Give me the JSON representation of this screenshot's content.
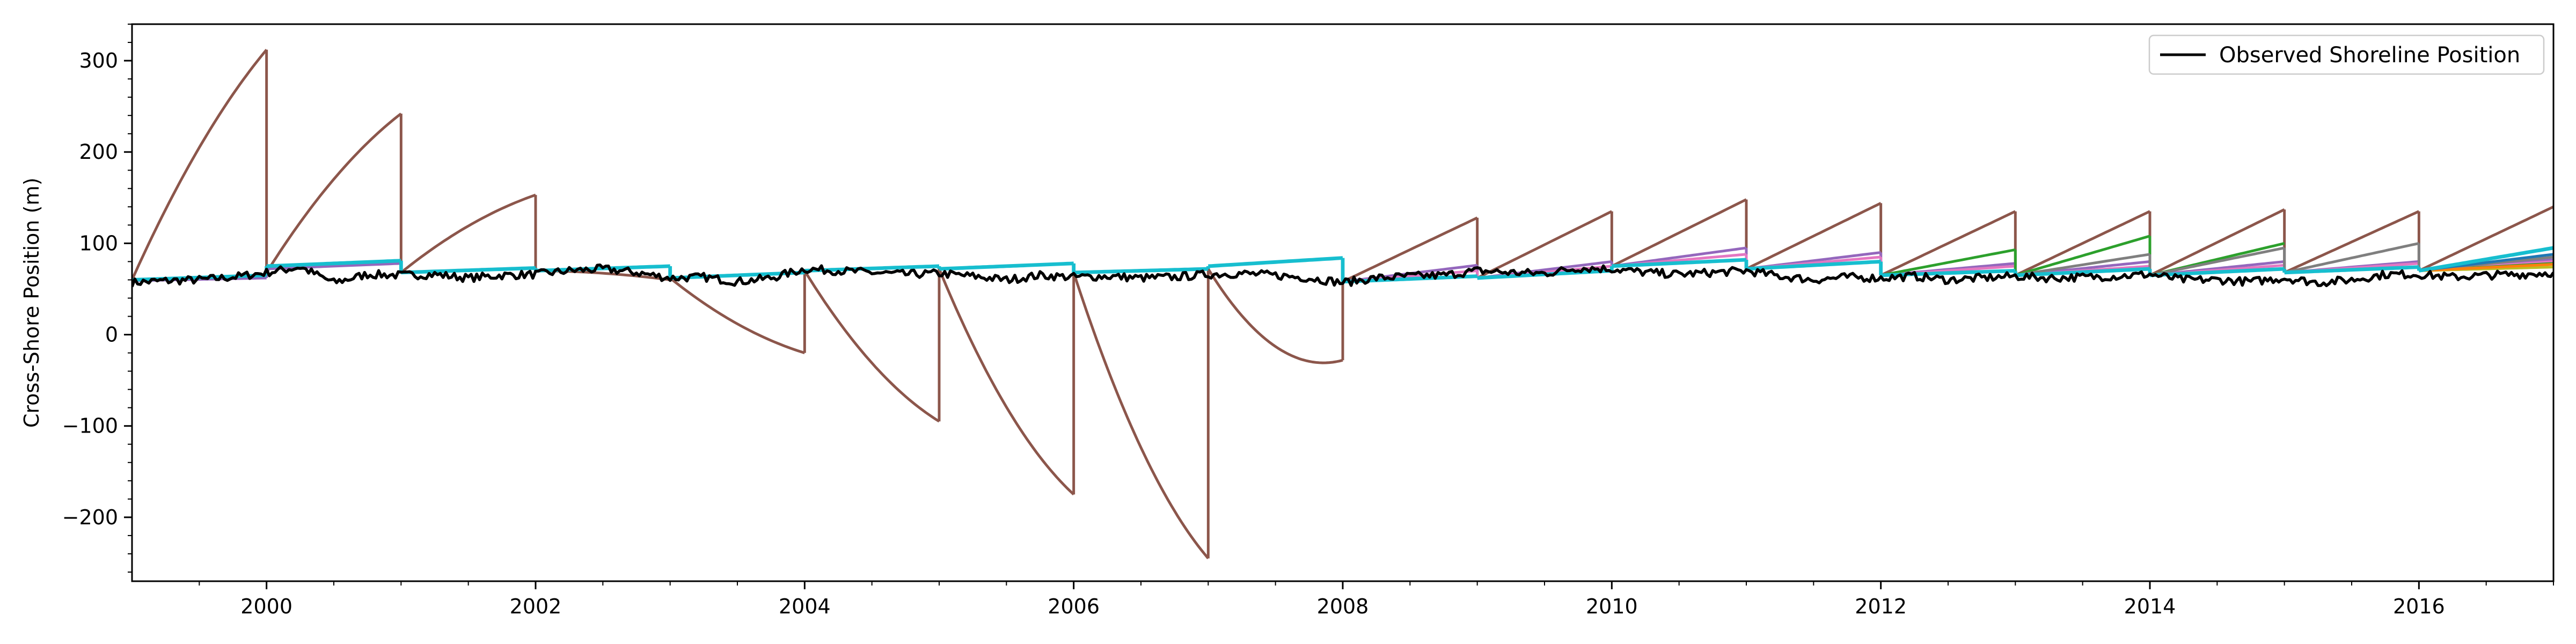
{
  "chart_data": {
    "type": "line",
    "title": "",
    "xlabel": "",
    "ylabel": "Cross-Shore Position (m)",
    "xlim": [
      1999.0,
      2017.0
    ],
    "ylim": [
      -270,
      340
    ],
    "x_ticks": [
      2000,
      2002,
      2004,
      2006,
      2008,
      2010,
      2012,
      2014,
      2016
    ],
    "x_tick_labels": [
      "2000",
      "2002",
      "2004",
      "2006",
      "2008",
      "2010",
      "2012",
      "2014",
      "2016"
    ],
    "y_ticks": [
      -200,
      -100,
      0,
      100,
      200,
      300
    ],
    "y_tick_labels": [
      "−200",
      "−100",
      "0",
      "100",
      "200",
      "300"
    ],
    "legend": {
      "placement": "top-right",
      "entries": [
        {
          "label": "Observed Shoreline Position",
          "color": "#000000"
        }
      ]
    },
    "observed": {
      "name": "Observed Shoreline Position",
      "color": "#000000",
      "points": [
        [
          1999.0,
          57
        ],
        [
          1999.25,
          59
        ],
        [
          1999.5,
          60
        ],
        [
          1999.75,
          63
        ],
        [
          2000.0,
          68
        ],
        [
          2000.25,
          74
        ],
        [
          2000.5,
          57
        ],
        [
          2000.75,
          66
        ],
        [
          2001.0,
          65
        ],
        [
          2001.25,
          66
        ],
        [
          2001.5,
          62
        ],
        [
          2001.75,
          65
        ],
        [
          2002.0,
          66
        ],
        [
          2002.25,
          70
        ],
        [
          2002.5,
          72
        ],
        [
          2002.75,
          68
        ],
        [
          2003.0,
          62
        ],
        [
          2003.25,
          63
        ],
        [
          2003.5,
          58
        ],
        [
          2003.75,
          62
        ],
        [
          2004.0,
          72
        ],
        [
          2004.25,
          70
        ],
        [
          2004.5,
          68
        ],
        [
          2004.75,
          66
        ],
        [
          2005.0,
          67
        ],
        [
          2005.25,
          64
        ],
        [
          2005.5,
          60
        ],
        [
          2005.75,
          65
        ],
        [
          2006.0,
          63
        ],
        [
          2006.25,
          64
        ],
        [
          2006.5,
          62
        ],
        [
          2006.75,
          63
        ],
        [
          2007.0,
          66
        ],
        [
          2007.25,
          67
        ],
        [
          2007.5,
          65
        ],
        [
          2007.75,
          62
        ],
        [
          2008.0,
          57
        ],
        [
          2008.25,
          62
        ],
        [
          2008.5,
          64
        ],
        [
          2008.75,
          65
        ],
        [
          2009.0,
          70
        ],
        [
          2009.25,
          68
        ],
        [
          2009.5,
          67
        ],
        [
          2009.75,
          73
        ],
        [
          2010.0,
          72
        ],
        [
          2010.25,
          68
        ],
        [
          2010.5,
          66
        ],
        [
          2010.75,
          68
        ],
        [
          2011.0,
          70
        ],
        [
          2011.25,
          64
        ],
        [
          2011.5,
          60
        ],
        [
          2011.75,
          63
        ],
        [
          2012.0,
          62
        ],
        [
          2012.25,
          64
        ],
        [
          2012.5,
          60
        ],
        [
          2012.75,
          62
        ],
        [
          2013.0,
          64
        ],
        [
          2013.25,
          62
        ],
        [
          2013.5,
          63
        ],
        [
          2013.75,
          64
        ],
        [
          2014.0,
          66
        ],
        [
          2014.25,
          60
        ],
        [
          2014.5,
          60
        ],
        [
          2014.75,
          58
        ],
        [
          2015.0,
          62
        ],
        [
          2015.25,
          57
        ],
        [
          2015.5,
          60
        ],
        [
          2015.75,
          66
        ],
        [
          2016.0,
          66
        ],
        [
          2016.25,
          63
        ],
        [
          2016.5,
          65
        ],
        [
          2016.75,
          66
        ],
        [
          2017.0,
          68
        ]
      ]
    },
    "forecast_runs": [
      {
        "color": "#8c564b",
        "segments": [
          {
            "start": 1999.0,
            "end": 2000.0,
            "y0": 60,
            "y1": 312,
            "shape": 0.3
          },
          {
            "start": 2000.0,
            "end": 2001.0,
            "y0": 68,
            "y1": 242,
            "shape": 0.35
          },
          {
            "start": 2001.0,
            "end": 2002.0,
            "y0": 68,
            "y1": 153,
            "shape": 0.4
          },
          {
            "start": 2002.0,
            "end": 2003.0,
            "y0": 70,
            "y1": 60,
            "shape": -0.9
          },
          {
            "start": 2003.0,
            "end": 2004.0,
            "y0": 62,
            "y1": -20,
            "shape": 0.45
          },
          {
            "start": 2004.0,
            "end": 2005.0,
            "y0": 70,
            "y1": -95,
            "shape": 0.45
          },
          {
            "start": 2005.0,
            "end": 2006.0,
            "y0": 72,
            "y1": -175,
            "shape": 0.45
          },
          {
            "start": 2006.0,
            "end": 2007.0,
            "y0": 68,
            "y1": -245,
            "shape": 0.45
          },
          {
            "start": 2007.0,
            "end": 2008.0,
            "y0": 72,
            "y1": -28,
            "shape": 1.4
          },
          {
            "start": 2008.0,
            "end": 2009.0,
            "y0": 58,
            "y1": 128,
            "shape": 0
          },
          {
            "start": 2009.0,
            "end": 2010.0,
            "y0": 62,
            "y1": 135,
            "shape": 0
          },
          {
            "start": 2010.0,
            "end": 2011.0,
            "y0": 75,
            "y1": 148,
            "shape": 0
          },
          {
            "start": 2011.0,
            "end": 2012.0,
            "y0": 72,
            "y1": 144,
            "shape": 0
          },
          {
            "start": 2012.0,
            "end": 2013.0,
            "y0": 65,
            "y1": 135,
            "shape": 0
          },
          {
            "start": 2013.0,
            "end": 2014.0,
            "y0": 65,
            "y1": 135,
            "shape": 0
          },
          {
            "start": 2014.0,
            "end": 2015.0,
            "y0": 65,
            "y1": 137,
            "shape": 0
          },
          {
            "start": 2015.0,
            "end": 2016.0,
            "y0": 68,
            "y1": 135,
            "shape": 0
          },
          {
            "start": 2016.0,
            "end": 2017.0,
            "y0": 70,
            "y1": 140,
            "shape": 0
          }
        ]
      },
      {
        "color": "#9467bd",
        "segments": [
          {
            "start": 1999.0,
            "end": 2000.0,
            "y0": 59,
            "y1": 62,
            "shape": 0
          },
          {
            "start": 2000.0,
            "end": 2001.0,
            "y0": 72,
            "y1": 78,
            "shape": 0
          },
          {
            "start": 2008.0,
            "end": 2009.0,
            "y0": 58,
            "y1": 76,
            "shape": 0
          },
          {
            "start": 2009.0,
            "end": 2010.0,
            "y0": 62,
            "y1": 80,
            "shape": 0
          },
          {
            "start": 2010.0,
            "end": 2011.0,
            "y0": 75,
            "y1": 95,
            "shape": 0
          },
          {
            "start": 2011.0,
            "end": 2012.0,
            "y0": 72,
            "y1": 90,
            "shape": 0
          },
          {
            "start": 2012.0,
            "end": 2013.0,
            "y0": 65,
            "y1": 78,
            "shape": 0
          },
          {
            "start": 2013.0,
            "end": 2014.0,
            "y0": 65,
            "y1": 80,
            "shape": 0
          },
          {
            "start": 2014.0,
            "end": 2015.0,
            "y0": 65,
            "y1": 80,
            "shape": 0
          },
          {
            "start": 2015.0,
            "end": 2016.0,
            "y0": 68,
            "y1": 80,
            "shape": 0
          },
          {
            "start": 2016.0,
            "end": 2017.0,
            "y0": 70,
            "y1": 82,
            "shape": 0
          }
        ]
      },
      {
        "color": "#e377c2",
        "segments": [
          {
            "start": 2008.0,
            "end": 2009.0,
            "y0": 58,
            "y1": 70,
            "shape": 0
          },
          {
            "start": 2009.0,
            "end": 2010.0,
            "y0": 62,
            "y1": 75,
            "shape": 0
          },
          {
            "start": 2010.0,
            "end": 2011.0,
            "y0": 75,
            "y1": 88,
            "shape": 0
          },
          {
            "start": 2011.0,
            "end": 2012.0,
            "y0": 72,
            "y1": 85,
            "shape": 0
          },
          {
            "start": 2012.0,
            "end": 2013.0,
            "y0": 65,
            "y1": 75,
            "shape": 0
          },
          {
            "start": 2013.0,
            "end": 2014.0,
            "y0": 65,
            "y1": 75,
            "shape": 0
          },
          {
            "start": 2014.0,
            "end": 2015.0,
            "y0": 65,
            "y1": 76,
            "shape": 0
          },
          {
            "start": 2015.0,
            "end": 2016.0,
            "y0": 68,
            "y1": 78,
            "shape": 0
          },
          {
            "start": 2016.0,
            "end": 2017.0,
            "y0": 70,
            "y1": 80,
            "shape": 0
          }
        ]
      },
      {
        "color": "#2ca02c",
        "segments": [
          {
            "start": 2012.0,
            "end": 2013.0,
            "y0": 65,
            "y1": 93,
            "shape": 0
          },
          {
            "start": 2013.0,
            "end": 2014.0,
            "y0": 65,
            "y1": 108,
            "shape": 0
          },
          {
            "start": 2014.0,
            "end": 2015.0,
            "y0": 65,
            "y1": 100,
            "shape": 0
          },
          {
            "start": 2016.0,
            "end": 2017.0,
            "y0": 70,
            "y1": 78,
            "shape": 0
          }
        ]
      },
      {
        "color": "#7f7f7f",
        "segments": [
          {
            "start": 2013.0,
            "end": 2014.0,
            "y0": 65,
            "y1": 88,
            "shape": 0
          },
          {
            "start": 2014.0,
            "end": 2015.0,
            "y0": 65,
            "y1": 95,
            "shape": 0
          },
          {
            "start": 2015.0,
            "end": 2016.0,
            "y0": 68,
            "y1": 100,
            "shape": 0
          },
          {
            "start": 2016.0,
            "end": 2017.0,
            "y0": 70,
            "y1": 85,
            "shape": 0
          }
        ]
      },
      {
        "color": "#bcbd22",
        "segments": [
          {
            "start": 2016.0,
            "end": 2017.0,
            "y0": 70,
            "y1": 74,
            "shape": 0
          }
        ]
      },
      {
        "color": "#ff7f0e",
        "segments": [
          {
            "start": 2016.0,
            "end": 2017.0,
            "y0": 70,
            "y1": 77,
            "shape": 0
          }
        ]
      },
      {
        "color": "#1f77b4",
        "segments": [
          {
            "start": 2016.0,
            "end": 2017.0,
            "y0": 70,
            "y1": 88,
            "shape": 0
          }
        ]
      },
      {
        "color": "#17becf",
        "width": 2.2,
        "segments": [
          {
            "start": 1999.0,
            "end": 2000.0,
            "y0": 60,
            "y1": 65,
            "shape": 0
          },
          {
            "start": 2000.0,
            "end": 2001.0,
            "y0": 75,
            "y1": 81,
            "shape": 0
          },
          {
            "start": 2001.0,
            "end": 2002.0,
            "y0": 68,
            "y1": 73,
            "shape": 0
          },
          {
            "start": 2002.0,
            "end": 2003.0,
            "y0": 70,
            "y1": 75,
            "shape": 0
          },
          {
            "start": 2003.0,
            "end": 2004.0,
            "y0": 62,
            "y1": 68,
            "shape": 0
          },
          {
            "start": 2004.0,
            "end": 2005.0,
            "y0": 70,
            "y1": 75,
            "shape": 0
          },
          {
            "start": 2005.0,
            "end": 2006.0,
            "y0": 72,
            "y1": 78,
            "shape": 0
          },
          {
            "start": 2006.0,
            "end": 2007.0,
            "y0": 68,
            "y1": 72,
            "shape": 0
          },
          {
            "start": 2007.0,
            "end": 2008.0,
            "y0": 75,
            "y1": 84,
            "shape": 0
          },
          {
            "start": 2008.0,
            "end": 2009.0,
            "y0": 58,
            "y1": 64,
            "shape": 0
          },
          {
            "start": 2009.0,
            "end": 2010.0,
            "y0": 62,
            "y1": 70,
            "shape": 0
          },
          {
            "start": 2010.0,
            "end": 2011.0,
            "y0": 75,
            "y1": 82,
            "shape": 0
          },
          {
            "start": 2011.0,
            "end": 2012.0,
            "y0": 72,
            "y1": 80,
            "shape": 0
          },
          {
            "start": 2012.0,
            "end": 2013.0,
            "y0": 65,
            "y1": 70,
            "shape": 0
          },
          {
            "start": 2013.0,
            "end": 2014.0,
            "y0": 65,
            "y1": 72,
            "shape": 0
          },
          {
            "start": 2014.0,
            "end": 2015.0,
            "y0": 65,
            "y1": 72,
            "shape": 0
          },
          {
            "start": 2015.0,
            "end": 2016.0,
            "y0": 68,
            "y1": 74,
            "shape": 0
          },
          {
            "start": 2016.0,
            "end": 2017.0,
            "y0": 70,
            "y1": 95,
            "shape": 0
          }
        ]
      }
    ]
  }
}
